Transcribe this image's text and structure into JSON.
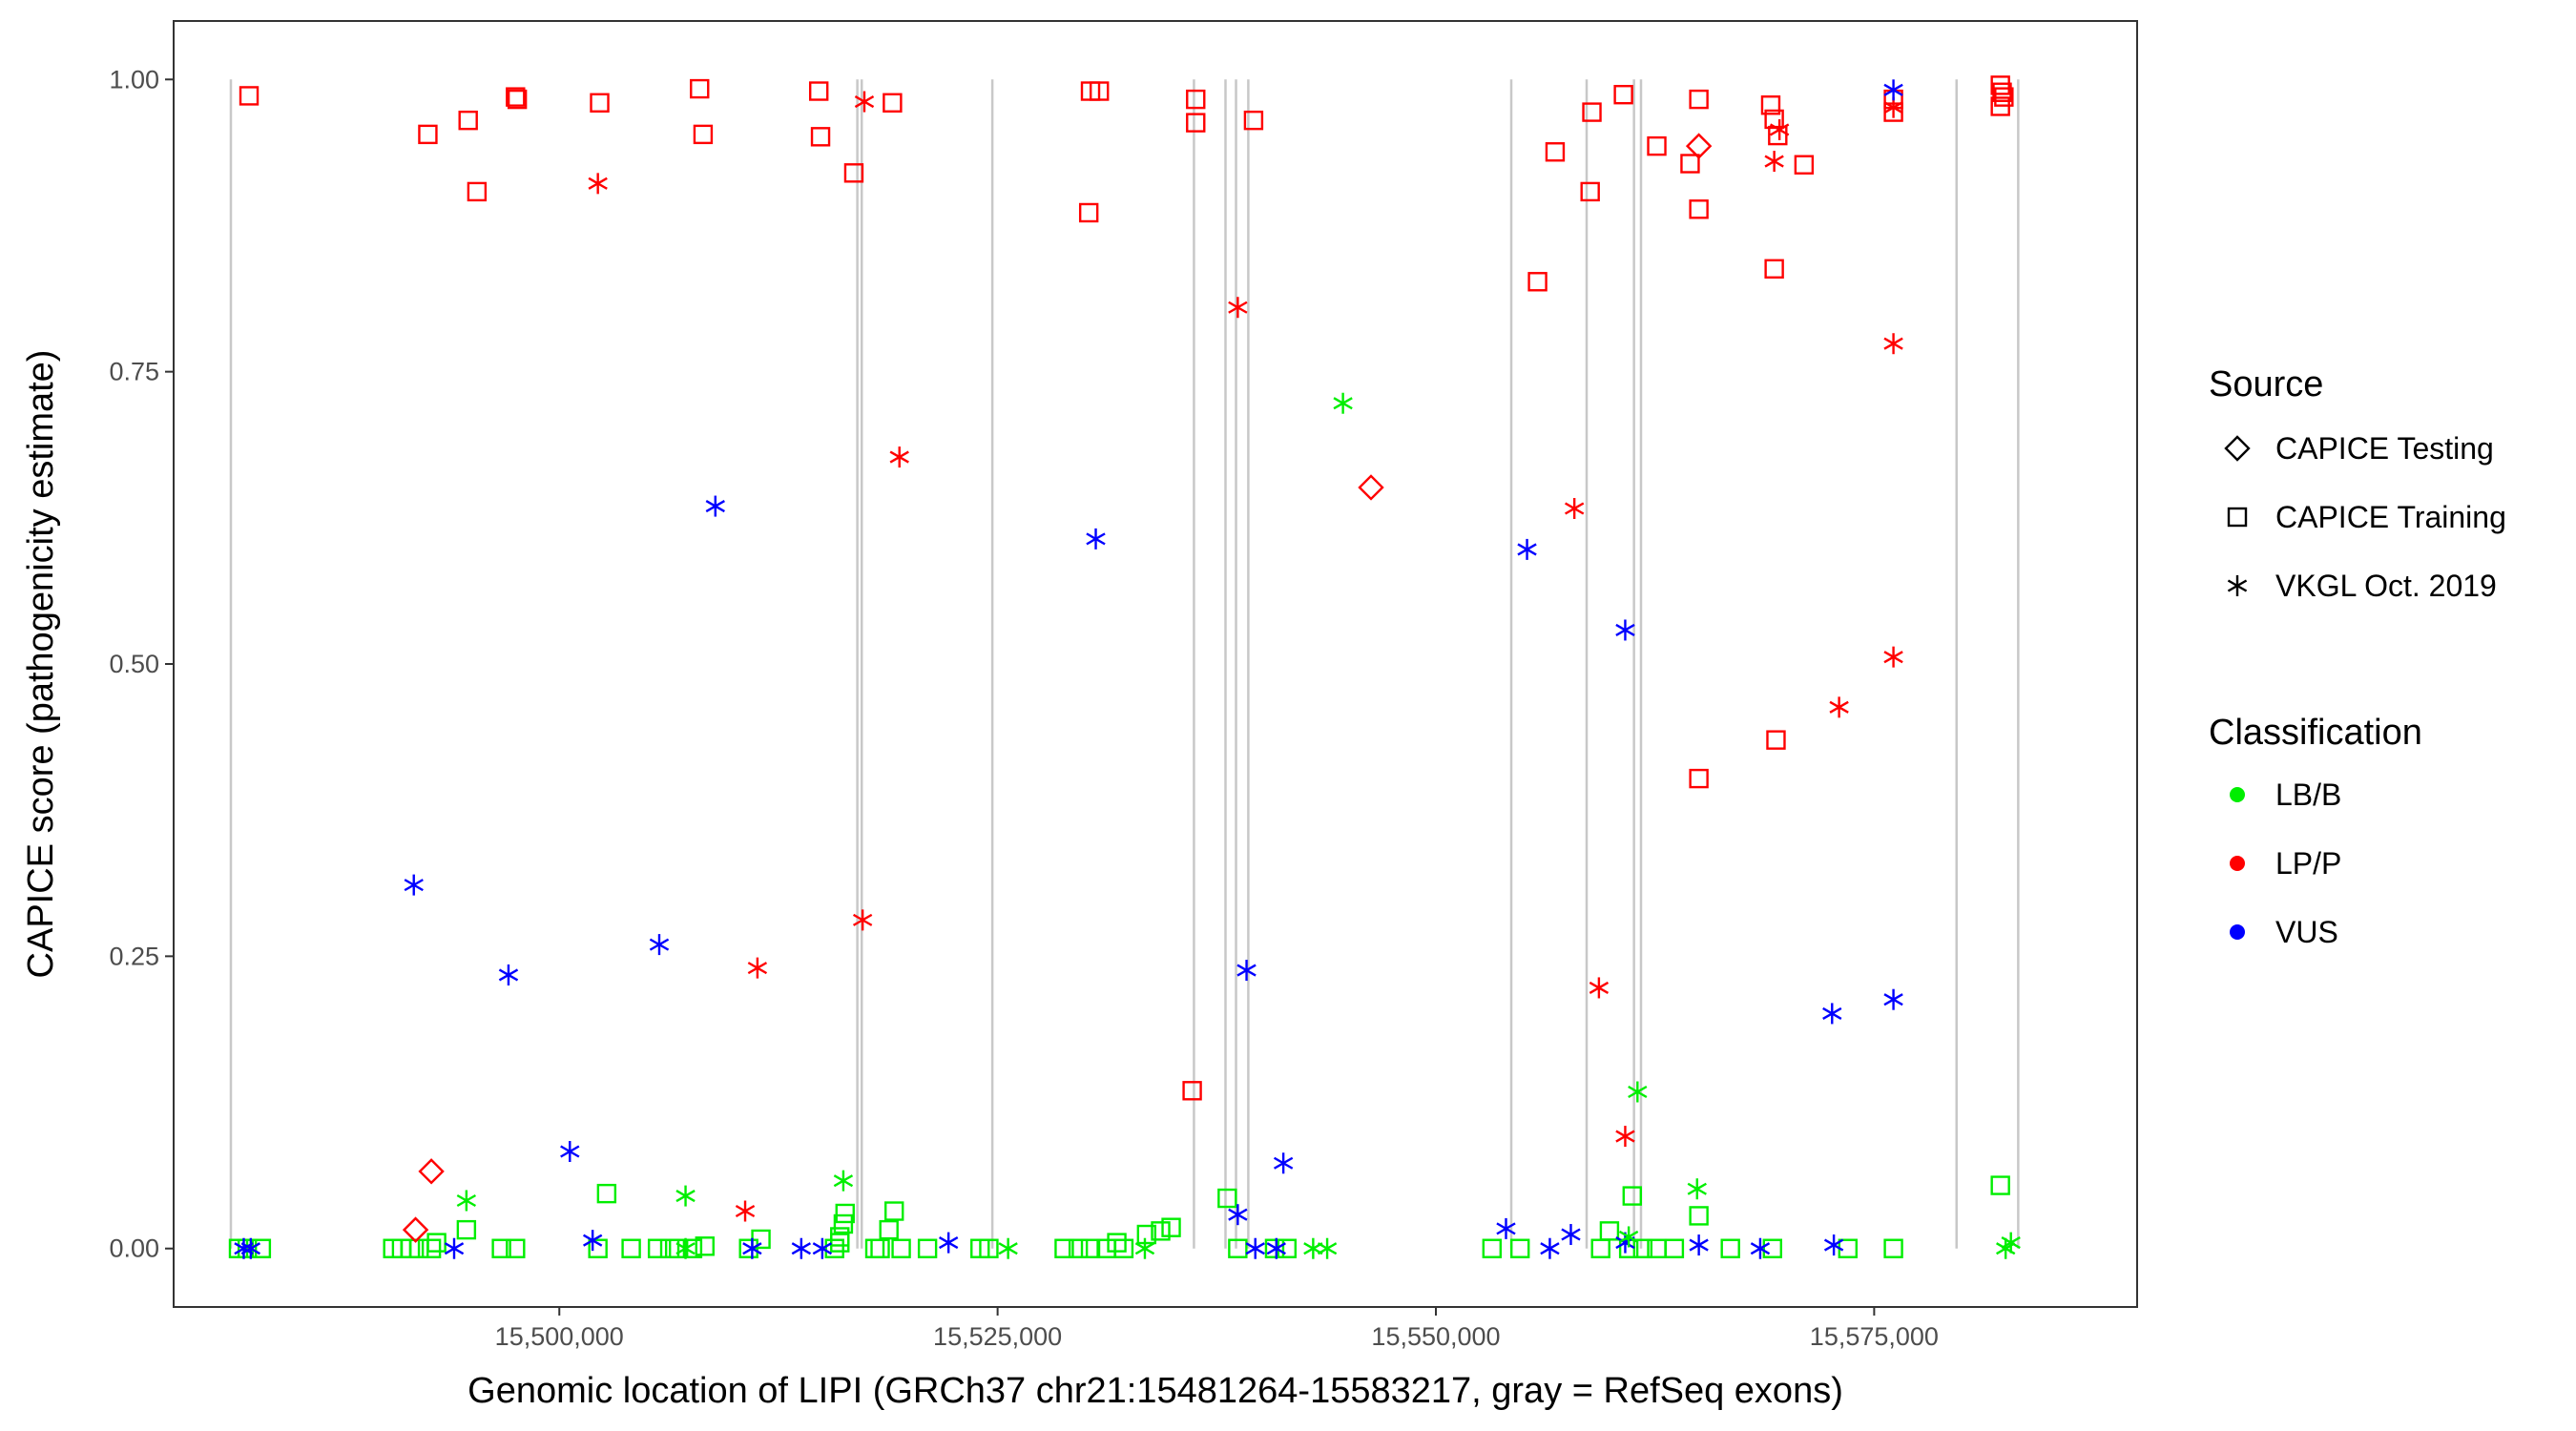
{
  "chart_data": {
    "type": "scatter",
    "title": "",
    "xlabel": "Genomic location of LIPI (GRCh37 chr21:15481264-15583217, gray = RefSeq exons)",
    "ylabel": "CAPICE score (pathogenicity estimate)",
    "xlim": [
      15478000,
      15590000
    ],
    "ylim": [
      -0.05,
      1.05
    ],
    "x_ticks": [
      15500000,
      15525000,
      15550000,
      15575000
    ],
    "x_tick_labels": [
      "15,500,000",
      "15,525,000",
      "15,550,000",
      "15,575,000"
    ],
    "y_ticks": [
      0,
      0.25,
      0.5,
      0.75,
      1.0
    ],
    "y_tick_labels": [
      "0.00",
      "0.25",
      "0.50",
      "0.75",
      "1.00"
    ],
    "grid": false,
    "exon_lines": [
      15481264,
      15517000,
      15517250,
      15524700,
      15536200,
      15538000,
      15538600,
      15539300,
      15554300,
      15558600,
      15561300,
      15561700,
      15579700,
      15583217
    ],
    "exon_color": "#c8c8c8",
    "legend_position": "right",
    "legend_source": {
      "title": "Source",
      "items": [
        {
          "label": "CAPICE Testing",
          "shape": "diamond"
        },
        {
          "label": "CAPICE Training",
          "shape": "square"
        },
        {
          "label": "VKGL Oct. 2019",
          "shape": "asterisk"
        }
      ]
    },
    "legend_classification": {
      "title": "Classification",
      "items": [
        {
          "label": "LB/B",
          "color": "#00ee00"
        },
        {
          "label": "LP/P",
          "color": "#ff0000"
        },
        {
          "label": "VUS",
          "color": "#0000ff"
        }
      ]
    },
    "series": [
      {
        "source": "CAPICE Training",
        "classification": "LP/P",
        "points": [
          [
            15482300,
            0.986
          ],
          [
            15492500,
            0.953
          ],
          [
            15494800,
            0.965
          ],
          [
            15495300,
            0.904
          ],
          [
            15497500,
            0.985
          ],
          [
            15497600,
            0.983
          ],
          [
            15502300,
            0.98
          ],
          [
            15508000,
            0.992
          ],
          [
            15508200,
            0.953
          ],
          [
            15514800,
            0.99
          ],
          [
            15514900,
            0.951
          ],
          [
            15516800,
            0.92
          ],
          [
            15519000,
            0.98
          ],
          [
            15530300,
            0.99
          ],
          [
            15530800,
            0.99
          ],
          [
            15530200,
            0.886
          ],
          [
            15536300,
            0.983
          ],
          [
            15536300,
            0.963
          ],
          [
            15539600,
            0.965
          ],
          [
            15536100,
            0.135
          ],
          [
            15555800,
            0.827
          ],
          [
            15556800,
            0.938
          ],
          [
            15558900,
            0.972
          ],
          [
            15558800,
            0.904
          ],
          [
            15560700,
            0.987
          ],
          [
            15562600,
            0.943
          ],
          [
            15564500,
            0.928
          ],
          [
            15565000,
            0.983
          ],
          [
            15565000,
            0.889
          ],
          [
            15569100,
            0.978
          ],
          [
            15569300,
            0.966
          ],
          [
            15569500,
            0.952
          ],
          [
            15569300,
            0.838
          ],
          [
            15571000,
            0.927
          ],
          [
            15576100,
            0.983
          ],
          [
            15576100,
            0.972
          ],
          [
            15582200,
            0.995
          ],
          [
            15582300,
            0.989
          ],
          [
            15582400,
            0.985
          ],
          [
            15582200,
            0.977
          ],
          [
            15565000,
            0.402
          ],
          [
            15569400,
            0.435
          ]
        ]
      },
      {
        "source": "CAPICE Training",
        "classification": "LB/B",
        "points": [
          [
            15481700,
            0.0
          ],
          [
            15482200,
            0.0
          ],
          [
            15483000,
            0.0
          ],
          [
            15490500,
            0.0
          ],
          [
            15491000,
            0.0
          ],
          [
            15491500,
            0.0
          ],
          [
            15492000,
            0.0
          ],
          [
            15492700,
            0.0
          ],
          [
            15493000,
            0.005
          ],
          [
            15494700,
            0.016
          ],
          [
            15496700,
            0.0
          ],
          [
            15497500,
            0.0
          ],
          [
            15502200,
            0.0
          ],
          [
            15502700,
            0.047
          ],
          [
            15504100,
            0.0
          ],
          [
            15505600,
            0.0
          ],
          [
            15506300,
            0.0
          ],
          [
            15506800,
            0.0
          ],
          [
            15507600,
            0.0
          ],
          [
            15508300,
            0.002
          ],
          [
            15510800,
            0.0
          ],
          [
            15511500,
            0.008
          ],
          [
            15515700,
            0.0
          ],
          [
            15516000,
            0.01
          ],
          [
            15516200,
            0.021
          ],
          [
            15516300,
            0.03
          ],
          [
            15516000,
            0.005
          ],
          [
            15518000,
            0.0
          ],
          [
            15518300,
            0.0
          ],
          [
            15518800,
            0.016
          ],
          [
            15519100,
            0.032
          ],
          [
            15519500,
            0.0
          ],
          [
            15521000,
            0.0
          ],
          [
            15524000,
            0.0
          ],
          [
            15524500,
            0.0
          ],
          [
            15528800,
            0.0
          ],
          [
            15529600,
            0.0
          ],
          [
            15530300,
            0.0
          ],
          [
            15531200,
            0.0
          ],
          [
            15531800,
            0.005
          ],
          [
            15532200,
            0.0
          ],
          [
            15533500,
            0.012
          ],
          [
            15534300,
            0.015
          ],
          [
            15534900,
            0.018
          ],
          [
            15538100,
            0.043
          ],
          [
            15538700,
            0.0
          ],
          [
            15540800,
            0.0
          ],
          [
            15541500,
            0.0
          ],
          [
            15553200,
            0.0
          ],
          [
            15554800,
            0.0
          ],
          [
            15559400,
            0.0
          ],
          [
            15559900,
            0.015
          ],
          [
            15561200,
            0.045
          ],
          [
            15561000,
            0.0
          ],
          [
            15561800,
            0.0
          ],
          [
            15562600,
            0.0
          ],
          [
            15563600,
            0.0
          ],
          [
            15565000,
            0.028
          ],
          [
            15566800,
            0.0
          ],
          [
            15569200,
            0.0
          ],
          [
            15573500,
            0.0
          ],
          [
            15576100,
            0.0
          ],
          [
            15582200,
            0.054
          ]
        ]
      },
      {
        "source": "CAPICE Testing",
        "classification": "LP/P",
        "points": [
          [
            15492700,
            0.066
          ],
          [
            15491800,
            0.016
          ],
          [
            15546300,
            0.651
          ],
          [
            15565000,
            0.943
          ]
        ]
      },
      {
        "source": "VKGL Oct. 2019",
        "classification": "LP/P",
        "points": [
          [
            15502200,
            0.911
          ],
          [
            15517400,
            0.981
          ],
          [
            15510600,
            0.032
          ],
          [
            15511300,
            0.24
          ],
          [
            15517300,
            0.281
          ],
          [
            15519400,
            0.677
          ],
          [
            15538700,
            0.805
          ],
          [
            15557900,
            0.633
          ],
          [
            15559300,
            0.223
          ],
          [
            15560800,
            0.096
          ],
          [
            15569300,
            0.93
          ],
          [
            15569600,
            0.957
          ],
          [
            15573000,
            0.463
          ],
          [
            15576100,
            0.976
          ],
          [
            15576100,
            0.506
          ],
          [
            15576100,
            0.774
          ]
        ]
      },
      {
        "source": "VKGL Oct. 2019",
        "classification": "VUS",
        "points": [
          [
            15482000,
            0.0
          ],
          [
            15482400,
            0.0
          ],
          [
            15491700,
            0.311
          ],
          [
            15494000,
            0.0
          ],
          [
            15497100,
            0.234
          ],
          [
            15500600,
            0.083
          ],
          [
            15501900,
            0.007
          ],
          [
            15505700,
            0.26
          ],
          [
            15508900,
            0.635
          ],
          [
            15511000,
            0.0
          ],
          [
            15513800,
            0.0
          ],
          [
            15515000,
            0.0
          ],
          [
            15522200,
            0.005
          ],
          [
            15530600,
            0.607
          ],
          [
            15538700,
            0.029
          ],
          [
            15539200,
            0.238
          ],
          [
            15539700,
            0.0
          ],
          [
            15541300,
            0.073
          ],
          [
            15540900,
            0.0
          ],
          [
            15554000,
            0.017
          ],
          [
            15555200,
            0.598
          ],
          [
            15556500,
            0.0
          ],
          [
            15557700,
            0.012
          ],
          [
            15560800,
            0.529
          ],
          [
            15560800,
            0.005
          ],
          [
            15565000,
            0.003
          ],
          [
            15568500,
            0.0
          ],
          [
            15572600,
            0.201
          ],
          [
            15572700,
            0.003
          ],
          [
            15576100,
            0.991
          ],
          [
            15576100,
            0.213
          ]
        ]
      },
      {
        "source": "VKGL Oct. 2019",
        "classification": "LB/B",
        "points": [
          [
            15494700,
            0.041
          ],
          [
            15507200,
            0.045
          ],
          [
            15507200,
            0.0
          ],
          [
            15516200,
            0.058
          ],
          [
            15525600,
            0.0
          ],
          [
            15533400,
            0.0
          ],
          [
            15543000,
            0.0
          ],
          [
            15543800,
            0.0
          ],
          [
            15544700,
            0.723
          ],
          [
            15561500,
            0.134
          ],
          [
            15564900,
            0.051
          ],
          [
            15561000,
            0.01
          ],
          [
            15582500,
            0.0
          ],
          [
            15582800,
            0.005
          ]
        ]
      }
    ]
  }
}
